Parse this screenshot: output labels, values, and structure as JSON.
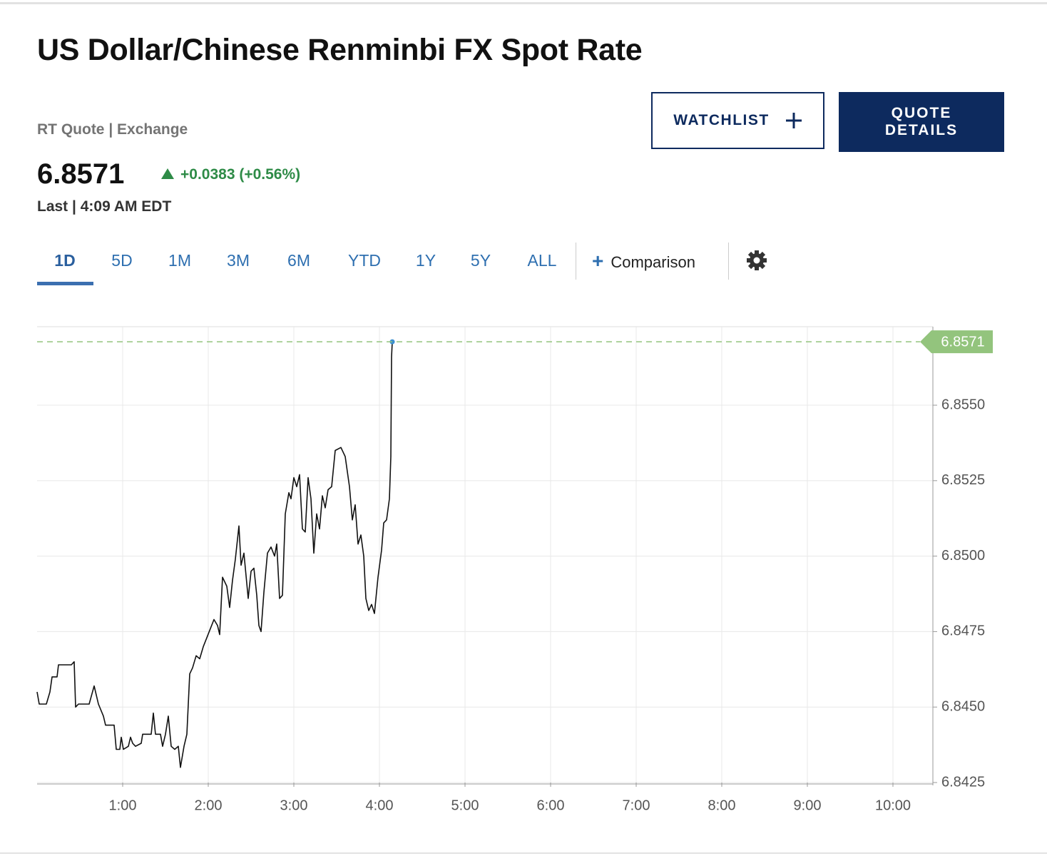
{
  "header": {
    "title": "US Dollar/Chinese Renminbi FX Spot Rate",
    "subtitle": "RT Quote | Exchange",
    "price": "6.8571",
    "change": "+0.0383 (+0.56%)",
    "time": "Last | 4:09 AM EDT",
    "watchlist": "WATCHLIST",
    "quote_details": "QUOTE DETAILS"
  },
  "tabs": {
    "items": [
      "1D",
      "5D",
      "1M",
      "3M",
      "6M",
      "YTD",
      "1Y",
      "5Y",
      "ALL"
    ],
    "active": 0,
    "comparison": "Comparison"
  },
  "chart_data": {
    "type": "line",
    "x": [
      0,
      1.5,
      6.5,
      9,
      10.5,
      14,
      15,
      24,
      26,
      27,
      29,
      36.5,
      40,
      41.5,
      43,
      46.5,
      48,
      54,
      55.5,
      58,
      59,
      60.5,
      64,
      65.5,
      67,
      69,
      73,
      74,
      80,
      81.5,
      83,
      86.5,
      88,
      90,
      92,
      94,
      96.5,
      99,
      100.5,
      103,
      105,
      107,
      109,
      111.5,
      114,
      116.5,
      119,
      121.5,
      124,
      126.5,
      128,
      130,
      133,
      135,
      137,
      139,
      141.5,
      143,
      145,
      148,
      150,
      152,
      154,
      155.5,
      157,
      159,
      161.5,
      164,
      166.5,
      168,
      170,
      172,
      174,
      176.5,
      178,
      180,
      182,
      184,
      186,
      188,
      190,
      192,
      194,
      196,
      198,
      200,
      202,
      204,
      206.5,
      209,
      213,
      216,
      219,
      221,
      223,
      225,
      227,
      229,
      230.5,
      232.5,
      234.5,
      236.5,
      239,
      241.5,
      243,
      245,
      247,
      248,
      248.5,
      249
    ],
    "series": [
      {
        "name": "USD/CNY",
        "color": "#111111",
        "values": [
          6.8455,
          6.8451,
          6.8451,
          6.8455,
          6.846,
          6.846,
          6.8464,
          6.8464,
          6.8465,
          6.845,
          6.8451,
          6.8451,
          6.8457,
          6.8454,
          6.8451,
          6.8447,
          6.8444,
          6.8444,
          6.8436,
          6.8436,
          6.844,
          6.8436,
          6.8437,
          6.844,
          6.8438,
          6.8437,
          6.8438,
          6.8441,
          6.8441,
          6.8448,
          6.8441,
          6.8441,
          6.8437,
          6.8441,
          6.8447,
          6.8437,
          6.8436,
          6.8437,
          6.843,
          6.8437,
          6.8441,
          6.8461,
          6.8463,
          6.8467,
          6.8466,
          6.847,
          6.8473,
          6.8476,
          6.8479,
          6.8477,
          6.8474,
          6.8493,
          6.849,
          6.8483,
          6.8492,
          6.8499,
          6.851,
          6.8497,
          6.8501,
          6.8486,
          6.8495,
          6.8496,
          6.8487,
          6.8477,
          6.8475,
          6.8488,
          6.8501,
          6.8503,
          6.85,
          6.8504,
          6.8486,
          6.8487,
          6.8514,
          6.8521,
          6.8519,
          6.8526,
          6.8523,
          6.8527,
          6.8509,
          6.8508,
          6.8526,
          6.8519,
          6.8501,
          6.8514,
          6.8509,
          6.852,
          6.8516,
          6.8522,
          6.8523,
          6.8535,
          6.8536,
          6.8533,
          6.8523,
          6.8512,
          6.8517,
          6.8504,
          6.8507,
          6.85,
          6.8486,
          6.8482,
          6.8484,
          6.8481,
          6.8493,
          6.8502,
          6.8511,
          6.8512,
          6.8519,
          6.8533,
          6.8566,
          6.8571
        ]
      }
    ],
    "last_value": 6.8571,
    "last_color": "#93c47d",
    "dot_color": "#3b8fd0",
    "xlim": [
      0,
      628
    ],
    "xticks": [
      {
        "value": 60,
        "label": "1:00"
      },
      {
        "value": 120,
        "label": "2:00"
      },
      {
        "value": 180,
        "label": "3:00"
      },
      {
        "value": 240,
        "label": "4:00"
      },
      {
        "value": 300,
        "label": "5:00"
      },
      {
        "value": 360,
        "label": "6:00"
      },
      {
        "value": 420,
        "label": "7:00"
      },
      {
        "value": 480,
        "label": "8:00"
      },
      {
        "value": 540,
        "label": "9:00"
      },
      {
        "value": 600,
        "label": "10:00"
      }
    ],
    "ylim": [
      6.8425,
      6.8576
    ],
    "yticks": [
      6.8425,
      {
        "value": 6.845,
        "label": "6.8450"
      },
      6.8475,
      {
        "value": 6.85,
        "label": "6.8500"
      },
      6.8525,
      {
        "value": 6.855,
        "label": "6.8550"
      }
    ],
    "grid": true
  }
}
